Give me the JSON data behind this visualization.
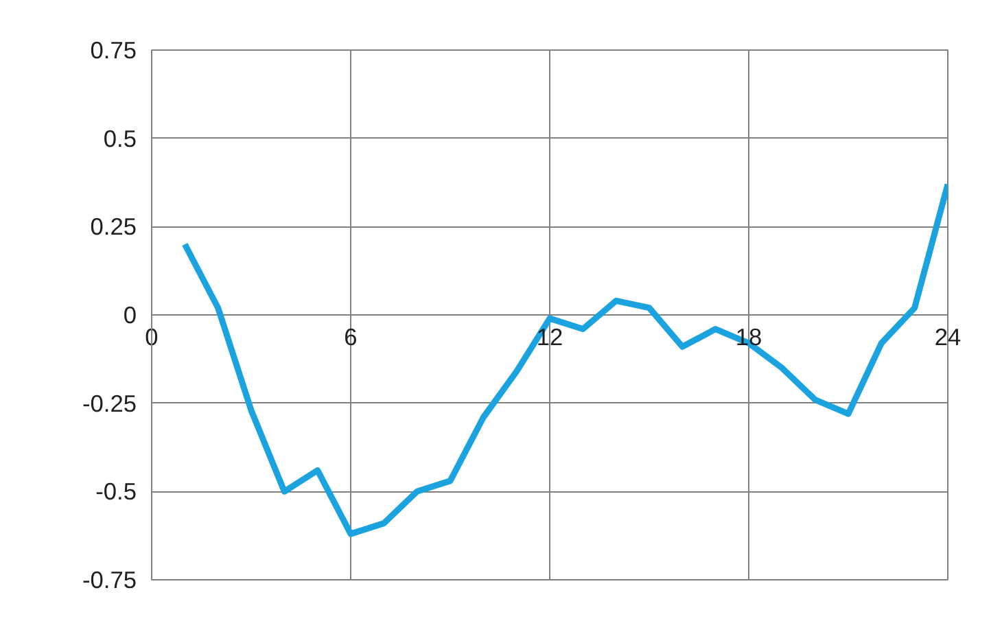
{
  "chart_data": {
    "type": "line",
    "x": [
      1,
      2,
      3,
      4,
      5,
      6,
      7,
      8,
      9,
      10,
      11,
      12,
      13,
      14,
      15,
      16,
      17,
      18,
      19,
      20,
      21,
      22,
      23,
      24
    ],
    "series": [
      {
        "color": "#1ba3e0",
        "values": [
          0.2,
          0.02,
          -0.27,
          -0.5,
          -0.44,
          -0.62,
          -0.59,
          -0.5,
          -0.47,
          -0.29,
          -0.16,
          -0.01,
          -0.04,
          0.04,
          0.02,
          -0.09,
          -0.04,
          -0.08,
          -0.15,
          -0.24,
          -0.28,
          -0.08,
          0.02,
          0.37
        ]
      }
    ],
    "xlim": [
      0,
      24
    ],
    "xticks": [
      0,
      6,
      12,
      18,
      24
    ],
    "ylim": [
      -0.75,
      0.75
    ],
    "yticks": [
      -0.75,
      -0.5,
      -0.25,
      0,
      0.25,
      0.5,
      0.75
    ],
    "grid": true,
    "marker": "none",
    "line_style": "solid"
  }
}
